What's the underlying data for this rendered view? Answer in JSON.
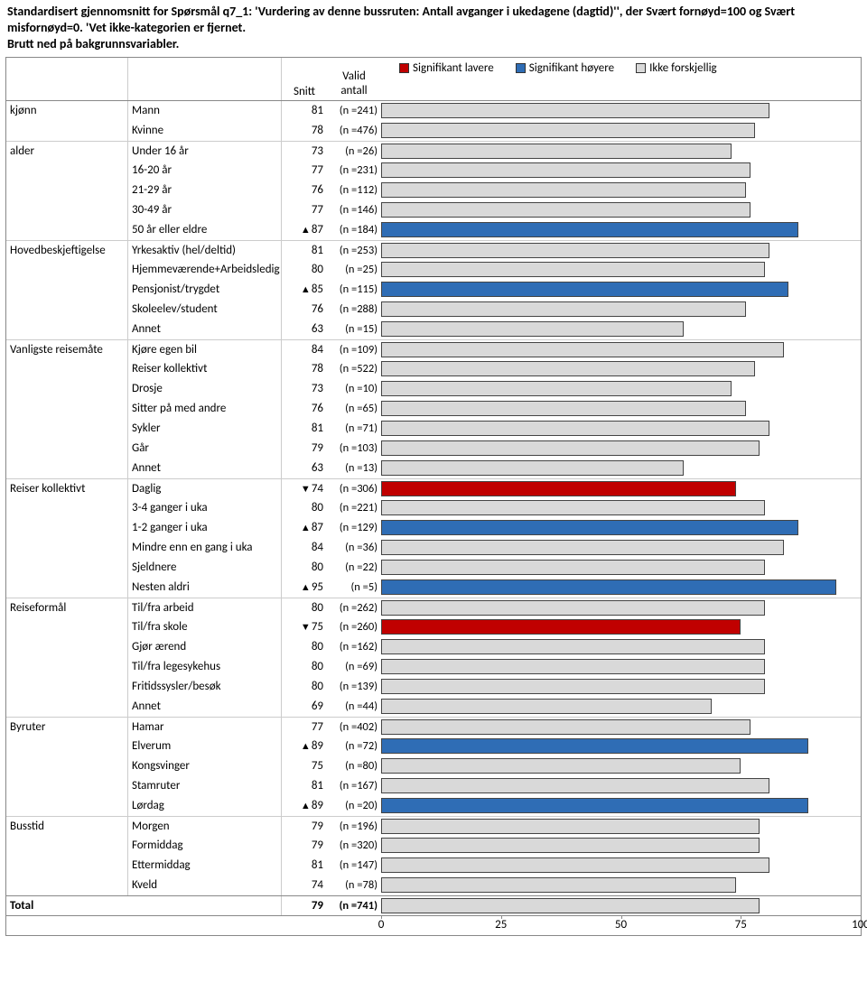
{
  "title": "Standardisert gjennomsnitt for Spørsmål q7_1: 'Vurdering av denne bussruten: Antall avganger i ukedagene (dagtid)'', der Svært fornøyd=100 og Svært misfornøyd=0. 'Vet ikke-kategorien er fjernet.\nBrutt ned på bakgrunnsvariabler.",
  "headers": {
    "snitt": "Snitt",
    "valid": "Valid\nantall"
  },
  "legend": {
    "lower": "Signifikant lavere",
    "higher": "Signifikant høyere",
    "same": "Ikke forskjellig"
  },
  "colors": {
    "lower": "#c00000",
    "higher": "#2f6db5",
    "same": "#d9d9d9",
    "border": "#444444"
  },
  "axis": {
    "min": 0,
    "max": 100,
    "ticks": [
      0,
      25,
      50,
      75,
      100
    ]
  },
  "total": {
    "label": "Total",
    "snitt": 79,
    "n": 741
  },
  "groups": [
    {
      "name": "kjønn",
      "rows": [
        {
          "label": "Mann",
          "snitt": 81,
          "n": 241,
          "sig": "same"
        },
        {
          "label": "Kvinne",
          "snitt": 78,
          "n": 476,
          "sig": "same"
        }
      ]
    },
    {
      "name": "alder",
      "rows": [
        {
          "label": "Under 16 år",
          "snitt": 73,
          "n": 26,
          "sig": "same"
        },
        {
          "label": "16-20 år",
          "snitt": 77,
          "n": 231,
          "sig": "same"
        },
        {
          "label": "21-29 år",
          "snitt": 76,
          "n": 112,
          "sig": "same"
        },
        {
          "label": "30-49 år",
          "snitt": 77,
          "n": 146,
          "sig": "same"
        },
        {
          "label": "50 år eller eldre",
          "snitt": 87,
          "n": 184,
          "sig": "higher"
        }
      ]
    },
    {
      "name": "Hovedbeskjeftigelse",
      "rows": [
        {
          "label": "Yrkesaktiv (hel/deltid)",
          "snitt": 81,
          "n": 253,
          "sig": "same"
        },
        {
          "label": "Hjemmeværende+Arbeidsledig",
          "snitt": 80,
          "n": 25,
          "sig": "same"
        },
        {
          "label": "Pensjonist/trygdet",
          "snitt": 85,
          "n": 115,
          "sig": "higher"
        },
        {
          "label": "Skoleelev/student",
          "snitt": 76,
          "n": 288,
          "sig": "same"
        },
        {
          "label": "Annet",
          "snitt": 63,
          "n": 15,
          "sig": "same"
        }
      ]
    },
    {
      "name": "Vanligste reisemåte",
      "rows": [
        {
          "label": "Kjøre egen bil",
          "snitt": 84,
          "n": 109,
          "sig": "same"
        },
        {
          "label": "Reiser kollektivt",
          "snitt": 78,
          "n": 522,
          "sig": "same"
        },
        {
          "label": "Drosje",
          "snitt": 73,
          "n": 10,
          "sig": "same"
        },
        {
          "label": "Sitter på med andre",
          "snitt": 76,
          "n": 65,
          "sig": "same"
        },
        {
          "label": "Sykler",
          "snitt": 81,
          "n": 71,
          "sig": "same"
        },
        {
          "label": "Går",
          "snitt": 79,
          "n": 103,
          "sig": "same"
        },
        {
          "label": "Annet",
          "snitt": 63,
          "n": 13,
          "sig": "same"
        }
      ]
    },
    {
      "name": "Reiser kollektivt",
      "rows": [
        {
          "label": "Daglig",
          "snitt": 74,
          "n": 306,
          "sig": "lower"
        },
        {
          "label": "3-4 ganger i uka",
          "snitt": 80,
          "n": 221,
          "sig": "same"
        },
        {
          "label": "1-2 ganger i uka",
          "snitt": 87,
          "n": 129,
          "sig": "higher"
        },
        {
          "label": "Mindre enn en gang i uka",
          "snitt": 84,
          "n": 36,
          "sig": "same"
        },
        {
          "label": "Sjeldnere",
          "snitt": 80,
          "n": 22,
          "sig": "same"
        },
        {
          "label": "Nesten aldri",
          "snitt": 95,
          "n": 5,
          "sig": "higher"
        }
      ]
    },
    {
      "name": "Reiseformål",
      "rows": [
        {
          "label": "Til/fra arbeid",
          "snitt": 80,
          "n": 262,
          "sig": "same"
        },
        {
          "label": "Til/fra skole",
          "snitt": 75,
          "n": 260,
          "sig": "lower"
        },
        {
          "label": "Gjør ærend",
          "snitt": 80,
          "n": 162,
          "sig": "same"
        },
        {
          "label": "Til/fra legesykehus",
          "snitt": 80,
          "n": 69,
          "sig": "same"
        },
        {
          "label": "Fritidssysler/besøk",
          "snitt": 80,
          "n": 139,
          "sig": "same"
        },
        {
          "label": "Annet",
          "snitt": 69,
          "n": 44,
          "sig": "same"
        }
      ]
    },
    {
      "name": "Byruter",
      "rows": [
        {
          "label": "Hamar",
          "snitt": 77,
          "n": 402,
          "sig": "same"
        },
        {
          "label": "Elverum",
          "snitt": 89,
          "n": 72,
          "sig": "higher"
        },
        {
          "label": "Kongsvinger",
          "snitt": 75,
          "n": 80,
          "sig": "same"
        },
        {
          "label": "Stamruter",
          "snitt": 81,
          "n": 167,
          "sig": "same"
        },
        {
          "label": "Lørdag",
          "snitt": 89,
          "n": 20,
          "sig": "higher"
        }
      ]
    },
    {
      "name": "Busstid",
      "rows": [
        {
          "label": "Morgen",
          "snitt": 79,
          "n": 196,
          "sig": "same"
        },
        {
          "label": "Formiddag",
          "snitt": 79,
          "n": 320,
          "sig": "same"
        },
        {
          "label": "Ettermiddag",
          "snitt": 81,
          "n": 147,
          "sig": "same"
        },
        {
          "label": "Kveld",
          "snitt": 74,
          "n": 78,
          "sig": "same"
        }
      ]
    }
  ]
}
